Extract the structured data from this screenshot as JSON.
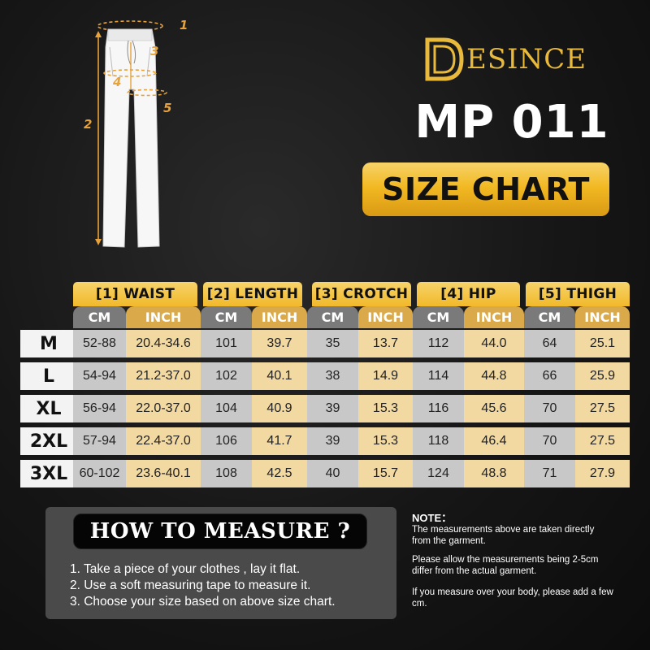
{
  "brand": {
    "name": "ESINCE",
    "logo_letter": "D",
    "accent": "#f2b923"
  },
  "model": "MP 011",
  "banner": "SIZE CHART",
  "diagram": {
    "labels": [
      "1",
      "2",
      "3",
      "4",
      "5"
    ],
    "icon": "pants-diagram-icon"
  },
  "table": {
    "groups": [
      "[1] WAIST",
      "[2] LENGTH",
      "[3] CROTCH",
      "[4] HIP",
      "[5] THIGH"
    ],
    "units": [
      "CM",
      "INCH"
    ],
    "rows": [
      {
        "size": "M",
        "values": [
          "52-88",
          "20.4-34.6",
          "101",
          "39.7",
          "35",
          "13.7",
          "112",
          "44.0",
          "64",
          "25.1"
        ]
      },
      {
        "size": "L",
        "values": [
          "54-94",
          "21.2-37.0",
          "102",
          "40.1",
          "38",
          "14.9",
          "114",
          "44.8",
          "66",
          "25.9"
        ]
      },
      {
        "size": "XL",
        "values": [
          "56-94",
          "22.0-37.0",
          "104",
          "40.9",
          "39",
          "15.3",
          "116",
          "45.6",
          "70",
          "27.5"
        ]
      },
      {
        "size": "2XL",
        "values": [
          "57-94",
          "22.4-37.0",
          "106",
          "41.7",
          "39",
          "15.3",
          "118",
          "46.4",
          "70",
          "27.5"
        ]
      },
      {
        "size": "3XL",
        "values": [
          "60-102",
          "23.6-40.1",
          "108",
          "42.5",
          "40",
          "15.7",
          "124",
          "48.8",
          "71",
          "27.9"
        ]
      }
    ]
  },
  "howto": {
    "title": "HOW TO MEASURE ?",
    "steps": [
      "1. Take a piece of your clothes , lay it flat.",
      "2. Use a soft measuring tape to measure it.",
      "3. Choose your size based on above size chart."
    ]
  },
  "note": {
    "title": "NOTE：",
    "paragraphs": [
      "The measurements above are taken directly from the garment.",
      "Please allow the measurements being 2-5cm differ from the actual garment.",
      "If you measure over your body, please add a few cm."
    ]
  }
}
